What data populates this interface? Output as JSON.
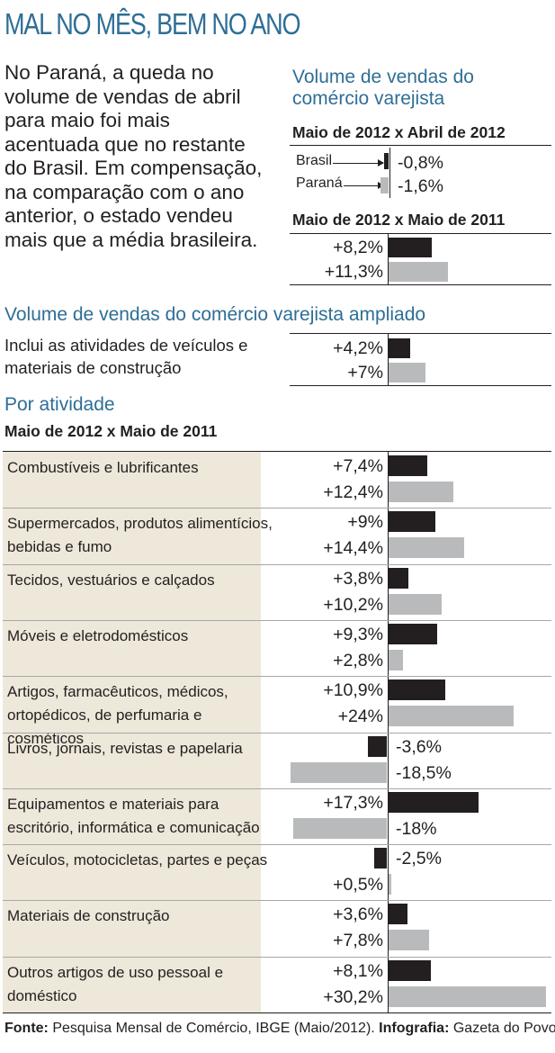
{
  "title": "MAL NO MÊS, BEM NO ANO",
  "intro": "No Paraná, a queda no volume de vendas de abril para maio foi mais acentuada que no restante do Brasil. Em compensação, na comparação com o ano anterior, o estado vendeu mais que a média brasileira.",
  "colors": {
    "title_blue": "#2e6e96",
    "brasil_bar": "#231f20",
    "parana_bar": "#b9babc",
    "activity_bg": "#ede8da"
  },
  "chart_data": [
    {
      "type": "bar",
      "title": "Volume de vendas do comércio varejista",
      "subtitle": "Maio de 2012 x Abril de 2012",
      "categories": [
        "Brasil",
        "Paraná"
      ],
      "values": [
        -0.8,
        -1.6
      ],
      "labels": [
        "-0,8%",
        "-1,6%"
      ]
    },
    {
      "type": "bar",
      "title": "Volume de vendas do comércio varejista",
      "subtitle": "Maio de 2012 x Maio de 2011",
      "categories": [
        "Brasil",
        "Paraná"
      ],
      "values": [
        8.2,
        11.3
      ],
      "labels": [
        "+8,2%",
        "+11,3%"
      ]
    },
    {
      "type": "bar",
      "title": "Volume de vendas do comércio varejista ampliado",
      "note": "Inclui as atividades de veículos e materiais de construção",
      "categories": [
        "Brasil",
        "Paraná"
      ],
      "values": [
        4.2,
        7.0
      ],
      "labels": [
        "+4,2%",
        "+7%"
      ]
    },
    {
      "type": "bar",
      "title": "Por atividade",
      "subtitle": "Maio de 2012 x Maio de 2011",
      "series": [
        {
          "name": "Brasil",
          "color": "#231f20"
        },
        {
          "name": "Paraná",
          "color": "#b9babc"
        }
      ],
      "activities": [
        {
          "label": "Combustíveis e lubrificantes",
          "brasil": 7.4,
          "parana": 12.4,
          "brasil_label": "+7,4%",
          "parana_label": "+12,4%"
        },
        {
          "label": "Supermercados, produtos alimentícios, bebidas e fumo",
          "brasil": 9.0,
          "parana": 14.4,
          "brasil_label": "+9%",
          "parana_label": "+14,4%"
        },
        {
          "label": "Tecidos, vestuários e calçados",
          "brasil": 3.8,
          "parana": 10.2,
          "brasil_label": "+3,8%",
          "parana_label": "+10,2%"
        },
        {
          "label": "Móveis e eletrodomésticos",
          "brasil": 9.3,
          "parana": 2.8,
          "brasil_label": "+9,3%",
          "parana_label": "+2,8%"
        },
        {
          "label": "Artigos, farmacêuticos, médicos, ortopédicos, de perfumaria e cosméticos",
          "brasil": 10.9,
          "parana": 24.0,
          "brasil_label": "+10,9%",
          "parana_label": "+24%"
        },
        {
          "label": "Livros, jornais, revistas e papelaria",
          "brasil": -3.6,
          "parana": -18.5,
          "brasil_label": "-3,6%",
          "parana_label": "-18,5%"
        },
        {
          "label": "Equipamentos e materiais para escritório, informática e comunicação",
          "brasil": 17.3,
          "parana": -18.0,
          "brasil_label": "+17,3%",
          "parana_label": "-18%"
        },
        {
          "label": "Veículos, motocicletas, partes e peças",
          "brasil": -2.5,
          "parana": 0.5,
          "brasil_label": "-2,5%",
          "parana_label": "+0,5%"
        },
        {
          "label": "Materiais de construção",
          "brasil": 3.6,
          "parana": 7.8,
          "brasil_label": "+3,6%",
          "parana_label": "+7,8%"
        },
        {
          "label": "Outros artigos de uso pessoal e doméstico",
          "brasil": 8.1,
          "parana": 30.2,
          "brasil_label": "+8,1%",
          "parana_label": "+30,2%"
        }
      ]
    }
  ],
  "footer": {
    "source_label": "Fonte:",
    "source_text": "Pesquisa Mensal de Comércio, IBGE (Maio/2012).",
    "credit_label": "Infografia:",
    "credit_text": "Gazeta do Povo."
  }
}
